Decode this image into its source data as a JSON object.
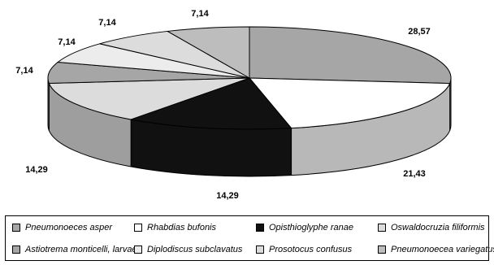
{
  "chart_data": {
    "type": "pie",
    "style": "3d",
    "series": [
      {
        "name": "Pneumonoeces asper",
        "value": 28.57,
        "label": "28,57",
        "color": "#a6a6a6"
      },
      {
        "name": "Rhabdias bufonis",
        "value": 21.43,
        "label": "21,43",
        "color": "#ffffff"
      },
      {
        "name": "Opisthioglyphe ranae",
        "value": 14.29,
        "label": "14,29",
        "color": "#111111"
      },
      {
        "name": "Oswaldocruzia filiformis",
        "value": 14.29,
        "label": "14,29",
        "color": "#dcdcdc"
      },
      {
        "name": "Astiotrema monticelli, larvae",
        "value": 7.14,
        "label": "7,14",
        "color": "#a6a6a6"
      },
      {
        "name": "Diplodiscus subclavatus",
        "value": 7.14,
        "label": "7,14",
        "color": "#ececec"
      },
      {
        "name": "Prosotocus confusus",
        "value": 7.14,
        "label": "7,14",
        "color": "#dcdcdc"
      },
      {
        "name": "Pneumonoecea variegatus",
        "value": 7.14,
        "label": "7,14",
        "color": "#bdbdbd"
      }
    ],
    "legend_position": "bottom"
  }
}
